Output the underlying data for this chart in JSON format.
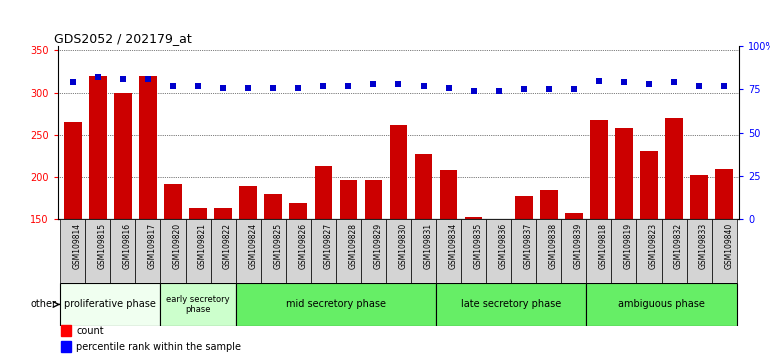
{
  "title": "GDS2052 / 202179_at",
  "samples": [
    "GSM109814",
    "GSM109815",
    "GSM109816",
    "GSM109817",
    "GSM109820",
    "GSM109821",
    "GSM109822",
    "GSM109824",
    "GSM109825",
    "GSM109826",
    "GSM109827",
    "GSM109828",
    "GSM109829",
    "GSM109830",
    "GSM109831",
    "GSM109834",
    "GSM109835",
    "GSM109836",
    "GSM109837",
    "GSM109838",
    "GSM109839",
    "GSM109818",
    "GSM109819",
    "GSM109823",
    "GSM109832",
    "GSM109833",
    "GSM109840"
  ],
  "counts": [
    265,
    320,
    300,
    320,
    192,
    164,
    163,
    190,
    180,
    170,
    213,
    197,
    197,
    262,
    227,
    208,
    153,
    151,
    178,
    185,
    158,
    268,
    258,
    231,
    270,
    202,
    210
  ],
  "percentile": [
    79,
    82,
    81,
    81,
    77,
    77,
    76,
    76,
    76,
    76,
    77,
    77,
    78,
    78,
    77,
    76,
    74,
    74,
    75,
    75,
    75,
    80,
    79,
    78,
    79,
    77,
    77
  ],
  "ylim_left": [
    150,
    355
  ],
  "ylim_right": [
    0,
    100
  ],
  "yticks_left": [
    150,
    200,
    250,
    300,
    350
  ],
  "yticks_right": [
    0,
    25,
    50,
    75,
    100
  ],
  "ytick_labels_right": [
    "0",
    "25",
    "50",
    "75",
    "100%"
  ],
  "bar_color": "#cc0000",
  "dot_color": "#0000cc",
  "bg_color": "#ffffff",
  "xtick_bg": "#d4d4d4",
  "phase_data": [
    {
      "label": "proliferative phase",
      "start": 0,
      "end": 4,
      "color": "#f0fff0"
    },
    {
      "label": "early secretory\nphase",
      "start": 4,
      "end": 7,
      "color": "#ccffcc"
    },
    {
      "label": "mid secretory phase",
      "start": 7,
      "end": 15,
      "color": "#66ee66"
    },
    {
      "label": "late secretory phase",
      "start": 15,
      "end": 21,
      "color": "#66ee66"
    },
    {
      "label": "ambiguous phase",
      "start": 21,
      "end": 27,
      "color": "#66ee66"
    }
  ],
  "legend_count_label": "count",
  "legend_pct_label": "percentile rank within the sample",
  "title_fontsize": 9,
  "axis_fontsize": 7,
  "bar_width": 0.7
}
